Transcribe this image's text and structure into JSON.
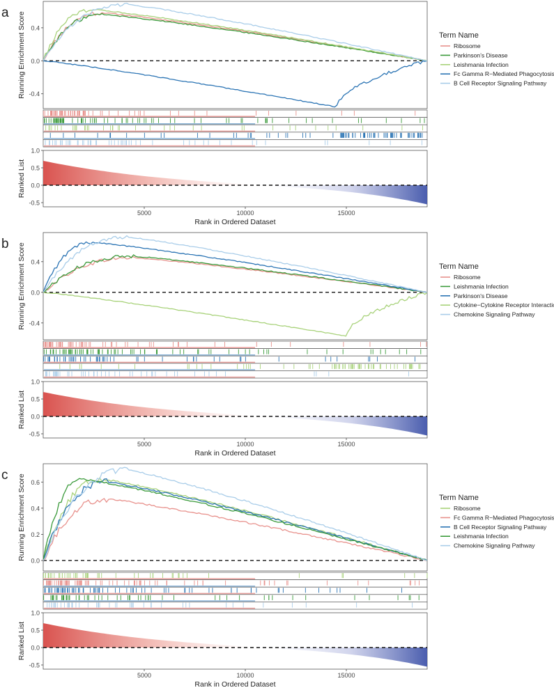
{
  "chart_data": [
    {
      "panel_label": "a",
      "type": "line",
      "ylabel_top": "Running Enrichment Score",
      "ylabel_bottom": "Ranked List",
      "xlabel": "Rank in Ordered Dataset",
      "x_ticks": [
        5000,
        10000,
        15000
      ],
      "y_ticks_top": [
        0.4,
        0.0,
        -0.4
      ],
      "y_ticks_bottom": [
        1.0,
        0.5,
        0.0,
        -0.5
      ],
      "ylim_top": [
        -0.58,
        0.72
      ],
      "ylim_bottom": [
        -0.62,
        1.0
      ],
      "xlim": [
        0,
        19000
      ],
      "legend_title": "Term Name",
      "series": [
        {
          "name": "Ribosome",
          "color": "#e8918c",
          "peak_x": 3000,
          "peak_y": 0.58,
          "hits": [
            [
              0,
              0.12,
              45
            ],
            [
              0.12,
              0.3,
              10
            ],
            [
              0.3,
              0.6,
              6
            ],
            [
              0.6,
              1,
              4
            ]
          ]
        },
        {
          "name": "Parkinson's Disease",
          "color": "#3a9a3a",
          "peak_x": 3000,
          "peak_y": 0.56,
          "hits": [
            [
              0,
              0.12,
              30
            ],
            [
              0.12,
              0.3,
              20
            ],
            [
              0.3,
              0.6,
              15
            ],
            [
              0.6,
              1,
              10
            ]
          ]
        },
        {
          "name": "Leishmania Infection",
          "color": "#a8d27a",
          "peak_x": 2500,
          "peak_y": 0.62,
          "hits": [
            [
              0,
              0.12,
              15
            ],
            [
              0.12,
              0.3,
              8
            ],
            [
              0.3,
              0.6,
              8
            ],
            [
              0.6,
              1,
              8
            ]
          ]
        },
        {
          "name": "Fc Gamma R−Mediated Phagocytosis",
          "color": "#2b74b4",
          "peak_x": 14500,
          "peak_y": -0.56,
          "hits": [
            [
              0,
              0.15,
              4
            ],
            [
              0.15,
              0.5,
              10
            ],
            [
              0.5,
              0.75,
              12
            ],
            [
              0.75,
              1,
              60
            ]
          ]
        },
        {
          "name": "B Cell Receptor Signaling Pathway",
          "color": "#a9cde9",
          "peak_x": 4200,
          "peak_y": 0.68,
          "hits": [
            [
              0,
              0.12,
              20
            ],
            [
              0.12,
              0.3,
              18
            ],
            [
              0.3,
              0.6,
              10
            ],
            [
              0.6,
              1,
              5
            ]
          ]
        }
      ]
    },
    {
      "panel_label": "b",
      "type": "line",
      "ylabel_top": "Running Enrichment Score",
      "ylabel_bottom": "Ranked List",
      "xlabel": "Rank in Ordered Dataset",
      "x_ticks": [
        5000,
        10000,
        15000
      ],
      "y_ticks_top": [
        0.4,
        0.0,
        -0.4
      ],
      "y_ticks_bottom": [
        1.0,
        0.5,
        0.0,
        -0.5
      ],
      "ylim_top": [
        -0.62,
        0.78
      ],
      "ylim_bottom": [
        -0.62,
        1.0
      ],
      "xlim": [
        0,
        19000
      ],
      "legend_title": "Term Name",
      "series": [
        {
          "name": "Ribosome",
          "color": "#e8918c",
          "peak_x": 4500,
          "peak_y": 0.45,
          "hits": [
            [
              0,
              0.12,
              40
            ],
            [
              0.12,
              0.3,
              12
            ],
            [
              0.3,
              0.6,
              8
            ],
            [
              0.6,
              1,
              5
            ]
          ]
        },
        {
          "name": "Leishmania Infection",
          "color": "#3a9a3a",
          "peak_x": 4500,
          "peak_y": 0.47,
          "hits": [
            [
              0,
              0.12,
              30
            ],
            [
              0.12,
              0.3,
              25
            ],
            [
              0.3,
              0.6,
              15
            ],
            [
              0.6,
              1,
              10
            ]
          ]
        },
        {
          "name": "Parkinson's Disease",
          "color": "#2b74b4",
          "peak_x": 2500,
          "peak_y": 0.65,
          "hits": [
            [
              0,
              0.12,
              25
            ],
            [
              0.12,
              0.3,
              15
            ],
            [
              0.3,
              0.6,
              10
            ],
            [
              0.6,
              1,
              8
            ]
          ]
        },
        {
          "name": "Cytokine−Cytokine Receptor Interaction",
          "color": "#a8d27a",
          "peak_x": 15000,
          "peak_y": -0.57,
          "hits": [
            [
              0,
              0.15,
              4
            ],
            [
              0.15,
              0.5,
              8
            ],
            [
              0.5,
              0.75,
              12
            ],
            [
              0.75,
              1,
              45
            ]
          ]
        },
        {
          "name": "Chemokine Signaling Pathway",
          "color": "#a9cde9",
          "peak_x": 4200,
          "peak_y": 0.72,
          "hits": [
            [
              0,
              0.12,
              20
            ],
            [
              0.12,
              0.3,
              15
            ],
            [
              0.3,
              0.6,
              8
            ],
            [
              0.6,
              1,
              4
            ]
          ]
        }
      ]
    },
    {
      "panel_label": "c",
      "type": "line",
      "ylabel_top": "Running Enrichment Score",
      "ylabel_bottom": "Ranked List",
      "xlabel": "Rank in Ordered Dataset",
      "x_ticks": [
        5000,
        10000,
        15000
      ],
      "y_ticks_top": [
        0.6,
        0.4,
        0.2,
        0.0
      ],
      "y_ticks_bottom": [
        1.0,
        0.5,
        0.0,
        -0.5
      ],
      "ylim_top": [
        -0.08,
        0.74
      ],
      "ylim_bottom": [
        -0.62,
        1.0
      ],
      "xlim": [
        0,
        19000
      ],
      "legend_title": "Term Name",
      "series": [
        {
          "name": "Ribosome",
          "color": "#a8d27a",
          "peak_x": 3000,
          "peak_y": 0.62,
          "hits": [
            [
              0,
              0.12,
              30
            ],
            [
              0.12,
              0.3,
              10
            ],
            [
              0.3,
              0.6,
              8
            ],
            [
              0.6,
              1,
              6
            ]
          ]
        },
        {
          "name": "Fc Gamma R−Mediated Phagocytosis",
          "color": "#e8918c",
          "peak_x": 3200,
          "peak_y": 0.47,
          "hits": [
            [
              0,
              0.12,
              45
            ],
            [
              0.12,
              0.3,
              20
            ],
            [
              0.3,
              0.6,
              12
            ],
            [
              0.6,
              1,
              10
            ]
          ]
        },
        {
          "name": "B Cell Receptor Signaling Pathway",
          "color": "#2b74b4",
          "peak_x": 3200,
          "peak_y": 0.6,
          "hits": [
            [
              0,
              0.12,
              30
            ],
            [
              0.12,
              0.3,
              20
            ],
            [
              0.3,
              0.6,
              15
            ],
            [
              0.6,
              1,
              10
            ]
          ]
        },
        {
          "name": "Leishmania Infection",
          "color": "#3a9a3a",
          "peak_x": 2000,
          "peak_y": 0.62,
          "hits": [
            [
              0,
              0.12,
              25
            ],
            [
              0.12,
              0.3,
              15
            ],
            [
              0.3,
              0.6,
              10
            ],
            [
              0.6,
              1,
              8
            ]
          ]
        },
        {
          "name": "Chemokine Signaling Pathway",
          "color": "#a9cde9",
          "peak_x": 4200,
          "peak_y": 0.69,
          "hits": [
            [
              0,
              0.12,
              20
            ],
            [
              0.12,
              0.3,
              15
            ],
            [
              0.3,
              0.6,
              8
            ],
            [
              0.6,
              1,
              4
            ]
          ]
        }
      ]
    }
  ]
}
